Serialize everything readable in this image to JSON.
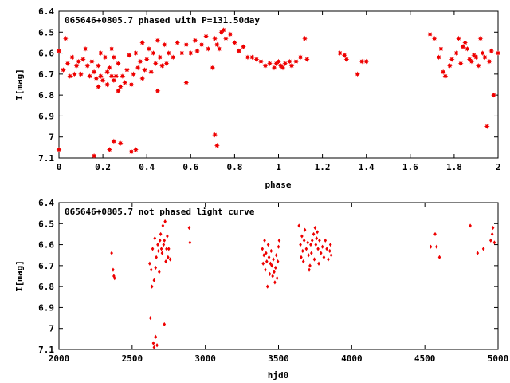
{
  "chart_data": [
    {
      "type": "scatter",
      "title": "065646+0805.7 phased with P=131.50day",
      "xlabel": "phase",
      "ylabel": "I[mag]",
      "xlim": [
        0,
        2
      ],
      "ylim": [
        6.4,
        7.1
      ],
      "y_inverted": true,
      "grid": false,
      "marker": "star",
      "color": "#ee0000",
      "xticks": [
        "0",
        "0.2",
        "0.4",
        "0.6",
        "0.8",
        "1",
        "1.2",
        "1.4",
        "1.6",
        "1.8",
        "2"
      ],
      "xtick_values": [
        0,
        0.2,
        0.4,
        0.6,
        0.8,
        1.0,
        1.2,
        1.4,
        1.6,
        1.8,
        2.0
      ],
      "yticks": [
        "6.4",
        "6.5",
        "6.6",
        "6.7",
        "6.8",
        "6.9",
        "7",
        "7.1"
      ],
      "ytick_values": [
        6.4,
        6.5,
        6.6,
        6.7,
        6.8,
        6.9,
        7.0,
        7.1
      ],
      "points": [
        [
          0.0,
          6.59
        ],
        [
          0.0,
          7.06
        ],
        [
          0.02,
          6.68
        ],
        [
          0.03,
          6.53
        ],
        [
          0.04,
          6.65
        ],
        [
          0.05,
          6.71
        ],
        [
          0.06,
          6.62
        ],
        [
          0.07,
          6.7
        ],
        [
          0.08,
          6.66
        ],
        [
          0.09,
          6.64
        ],
        [
          0.1,
          6.7
        ],
        [
          0.11,
          6.63
        ],
        [
          0.12,
          6.58
        ],
        [
          0.13,
          6.66
        ],
        [
          0.14,
          6.71
        ],
        [
          0.15,
          6.64
        ],
        [
          0.16,
          6.69
        ],
        [
          0.16,
          7.09
        ],
        [
          0.17,
          6.72
        ],
        [
          0.18,
          6.66
        ],
        [
          0.18,
          6.76
        ],
        [
          0.19,
          6.6
        ],
        [
          0.19,
          6.71
        ],
        [
          0.2,
          6.73
        ],
        [
          0.21,
          6.62
        ],
        [
          0.22,
          6.69
        ],
        [
          0.22,
          6.75
        ],
        [
          0.23,
          6.67
        ],
        [
          0.23,
          7.06
        ],
        [
          0.24,
          6.71
        ],
        [
          0.24,
          6.58
        ],
        [
          0.25,
          6.62
        ],
        [
          0.25,
          6.73
        ],
        [
          0.25,
          7.02
        ],
        [
          0.26,
          6.71
        ],
        [
          0.27,
          6.78
        ],
        [
          0.27,
          6.65
        ],
        [
          0.28,
          6.76
        ],
        [
          0.28,
          7.03
        ],
        [
          0.29,
          6.71
        ],
        [
          0.3,
          6.74
        ],
        [
          0.31,
          6.68
        ],
        [
          0.32,
          6.61
        ],
        [
          0.33,
          6.75
        ],
        [
          0.33,
          7.07
        ],
        [
          0.34,
          6.7
        ],
        [
          0.35,
          6.6
        ],
        [
          0.35,
          7.06
        ],
        [
          0.36,
          6.67
        ],
        [
          0.37,
          6.64
        ],
        [
          0.38,
          6.55
        ],
        [
          0.38,
          6.72
        ],
        [
          0.39,
          6.68
        ],
        [
          0.4,
          6.63
        ],
        [
          0.41,
          6.58
        ],
        [
          0.42,
          6.69
        ],
        [
          0.43,
          6.6
        ],
        [
          0.44,
          6.65
        ],
        [
          0.45,
          6.54
        ],
        [
          0.45,
          6.78
        ],
        [
          0.46,
          6.62
        ],
        [
          0.47,
          6.66
        ],
        [
          0.48,
          6.56
        ],
        [
          0.49,
          6.65
        ],
        [
          0.5,
          6.6
        ],
        [
          0.52,
          6.62
        ],
        [
          0.54,
          6.55
        ],
        [
          0.56,
          6.6
        ],
        [
          0.58,
          6.56
        ],
        [
          0.58,
          6.74
        ],
        [
          0.6,
          6.6
        ],
        [
          0.62,
          6.54
        ],
        [
          0.63,
          6.59
        ],
        [
          0.65,
          6.56
        ],
        [
          0.67,
          6.52
        ],
        [
          0.68,
          6.58
        ],
        [
          0.7,
          6.67
        ],
        [
          0.71,
          6.53
        ],
        [
          0.71,
          6.99
        ],
        [
          0.72,
          6.56
        ],
        [
          0.72,
          7.04
        ],
        [
          0.73,
          6.58
        ],
        [
          0.74,
          6.5
        ],
        [
          0.75,
          6.49
        ],
        [
          0.76,
          6.53
        ],
        [
          0.78,
          6.51
        ],
        [
          0.8,
          6.55
        ],
        [
          0.82,
          6.59
        ],
        [
          0.84,
          6.57
        ],
        [
          0.86,
          6.62
        ],
        [
          0.88,
          6.62
        ],
        [
          0.9,
          6.63
        ],
        [
          0.92,
          6.64
        ],
        [
          0.94,
          6.66
        ],
        [
          0.96,
          6.65
        ],
        [
          0.98,
          6.67
        ],
        [
          0.99,
          6.65
        ],
        [
          1.0,
          6.64
        ],
        [
          1.01,
          6.66
        ],
        [
          1.02,
          6.67
        ],
        [
          1.03,
          6.65
        ],
        [
          1.05,
          6.64
        ],
        [
          1.06,
          6.66
        ],
        [
          1.08,
          6.64
        ],
        [
          1.1,
          6.62
        ],
        [
          1.12,
          6.53
        ],
        [
          1.13,
          6.63
        ],
        [
          1.28,
          6.6
        ],
        [
          1.3,
          6.61
        ],
        [
          1.31,
          6.63
        ],
        [
          1.36,
          6.7
        ],
        [
          1.38,
          6.64
        ],
        [
          1.4,
          6.64
        ],
        [
          1.69,
          6.51
        ],
        [
          1.71,
          6.53
        ],
        [
          1.73,
          6.62
        ],
        [
          1.74,
          6.58
        ],
        [
          1.75,
          6.69
        ],
        [
          1.76,
          6.71
        ],
        [
          1.78,
          6.66
        ],
        [
          1.79,
          6.63
        ],
        [
          1.81,
          6.6
        ],
        [
          1.82,
          6.53
        ],
        [
          1.83,
          6.65
        ],
        [
          1.84,
          6.57
        ],
        [
          1.85,
          6.55
        ],
        [
          1.86,
          6.58
        ],
        [
          1.87,
          6.63
        ],
        [
          1.88,
          6.64
        ],
        [
          1.89,
          6.61
        ],
        [
          1.9,
          6.62
        ],
        [
          1.91,
          6.66
        ],
        [
          1.92,
          6.53
        ],
        [
          1.93,
          6.6
        ],
        [
          1.94,
          6.62
        ],
        [
          1.95,
          6.95
        ],
        [
          1.96,
          6.64
        ],
        [
          1.97,
          6.59
        ],
        [
          1.98,
          6.8
        ],
        [
          2.0,
          6.6
        ]
      ]
    },
    {
      "type": "scatter",
      "title": "065646+0805.7 not phased light curve",
      "xlabel": "hjd0",
      "ylabel": "I[mag]",
      "xlim": [
        2000,
        5000
      ],
      "ylim": [
        6.4,
        7.1
      ],
      "y_inverted": true,
      "grid": false,
      "marker": "diamond",
      "color": "#ee0000",
      "xticks": [
        "2000",
        "2500",
        "3000",
        "3500",
        "4000",
        "4500",
        "5000"
      ],
      "xtick_values": [
        2000,
        2500,
        3000,
        3500,
        4000,
        4500,
        5000
      ],
      "yticks": [
        "6.4",
        "6.5",
        "6.6",
        "6.7",
        "6.8",
        "6.9",
        "7",
        "7.1"
      ],
      "ytick_values": [
        6.4,
        6.5,
        6.6,
        6.7,
        6.8,
        6.9,
        7.0,
        7.1
      ],
      "points": [
        [
          2360,
          6.64
        ],
        [
          2370,
          6.72
        ],
        [
          2375,
          6.75
        ],
        [
          2380,
          6.76
        ],
        [
          2620,
          6.69
        ],
        [
          2625,
          6.95
        ],
        [
          2630,
          6.72
        ],
        [
          2635,
          6.8
        ],
        [
          2640,
          6.62
        ],
        [
          2645,
          7.07
        ],
        [
          2650,
          6.77
        ],
        [
          2650,
          7.09
        ],
        [
          2655,
          6.57
        ],
        [
          2660,
          6.71
        ],
        [
          2660,
          7.04
        ],
        [
          2665,
          6.66
        ],
        [
          2670,
          7.08
        ],
        [
          2675,
          6.6
        ],
        [
          2680,
          6.63
        ],
        [
          2685,
          6.73
        ],
        [
          2690,
          6.58
        ],
        [
          2695,
          6.55
        ],
        [
          2700,
          6.62
        ],
        [
          2705,
          6.64
        ],
        [
          2710,
          6.51
        ],
        [
          2715,
          6.6
        ],
        [
          2720,
          6.98
        ],
        [
          2720,
          6.58
        ],
        [
          2725,
          6.49
        ],
        [
          2730,
          6.68
        ],
        [
          2735,
          6.62
        ],
        [
          2740,
          6.56
        ],
        [
          2745,
          6.66
        ],
        [
          2750,
          6.62
        ],
        [
          2760,
          6.67
        ],
        [
          2890,
          6.52
        ],
        [
          2895,
          6.59
        ],
        [
          3390,
          6.62
        ],
        [
          3395,
          6.69
        ],
        [
          3400,
          6.65
        ],
        [
          3405,
          6.58
        ],
        [
          3410,
          6.72
        ],
        [
          3415,
          6.64
        ],
        [
          3420,
          6.68
        ],
        [
          3425,
          6.8
        ],
        [
          3430,
          6.6
        ],
        [
          3435,
          6.66
        ],
        [
          3440,
          6.74
        ],
        [
          3445,
          6.69
        ],
        [
          3450,
          6.63
        ],
        [
          3455,
          6.7
        ],
        [
          3460,
          6.75
        ],
        [
          3465,
          6.67
        ],
        [
          3470,
          6.73
        ],
        [
          3475,
          6.78
        ],
        [
          3480,
          6.71
        ],
        [
          3485,
          6.65
        ],
        [
          3490,
          6.76
        ],
        [
          3495,
          6.68
        ],
        [
          3500,
          6.61
        ],
        [
          3505,
          6.58
        ],
        [
          3640,
          6.51
        ],
        [
          3650,
          6.6
        ],
        [
          3655,
          6.66
        ],
        [
          3660,
          6.56
        ],
        [
          3665,
          6.63
        ],
        [
          3670,
          6.68
        ],
        [
          3675,
          6.58
        ],
        [
          3680,
          6.53
        ],
        [
          3690,
          6.62
        ],
        [
          3700,
          6.59
        ],
        [
          3705,
          6.65
        ],
        [
          3710,
          6.72
        ],
        [
          3715,
          6.7
        ],
        [
          3720,
          6.6
        ],
        [
          3725,
          6.64
        ],
        [
          3730,
          6.58
        ],
        [
          3740,
          6.55
        ],
        [
          3745,
          6.67
        ],
        [
          3750,
          6.52
        ],
        [
          3755,
          6.6
        ],
        [
          3760,
          6.57
        ],
        [
          3765,
          6.54
        ],
        [
          3770,
          6.62
        ],
        [
          3775,
          6.69
        ],
        [
          3780,
          6.58
        ],
        [
          3790,
          6.64
        ],
        [
          3800,
          6.61
        ],
        [
          3810,
          6.66
        ],
        [
          3820,
          6.58
        ],
        [
          3830,
          6.62
        ],
        [
          3840,
          6.67
        ],
        [
          3850,
          6.63
        ],
        [
          3855,
          6.6
        ],
        [
          3860,
          6.65
        ],
        [
          4540,
          6.61
        ],
        [
          4570,
          6.55
        ],
        [
          4580,
          6.61
        ],
        [
          4600,
          6.66
        ],
        [
          4810,
          6.51
        ],
        [
          4860,
          6.64
        ],
        [
          4900,
          6.62
        ],
        [
          4950,
          6.58
        ],
        [
          4960,
          6.55
        ],
        [
          4965,
          6.52
        ],
        [
          4975,
          6.59
        ]
      ]
    }
  ]
}
